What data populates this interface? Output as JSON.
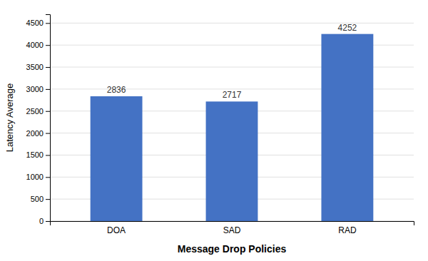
{
  "chart_data": {
    "type": "bar",
    "categories": [
      "DOA",
      "SAD",
      "RAD"
    ],
    "values": [
      2836,
      2717,
      4252
    ],
    "color": "#4472c4",
    "xlabel": "Message Drop Policies",
    "ylabel": "Latency Average",
    "ylim": [
      0,
      4700
    ],
    "yticks": [
      0,
      500,
      1000,
      1500,
      2000,
      2500,
      3000,
      3500,
      4000,
      4500
    ],
    "grid": true,
    "data_labels": true
  }
}
